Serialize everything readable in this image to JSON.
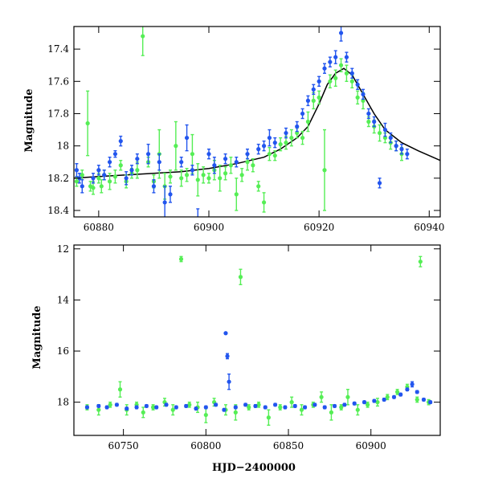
{
  "colors": {
    "green": "#55ee55",
    "blue": "#2255ee",
    "model": "#000000"
  },
  "chart_data": [
    {
      "type": "scatter",
      "panel": "top",
      "xlabel": "",
      "ylabel": "Magnitude",
      "xlim": [
        60875.5,
        60942
      ],
      "ylim": [
        18.44,
        17.26
      ],
      "y_inverted": true,
      "xticks": [
        60880,
        60900,
        60920,
        60940
      ],
      "yticks": [
        17.4,
        17.6,
        17.8,
        18,
        18.2,
        18.4
      ],
      "xtick_labels": [
        "60880",
        "60900",
        "60920",
        "60940"
      ],
      "ytick_labels": [
        "17.4",
        "17.6",
        "17.8",
        "18",
        "18.2",
        "18.4"
      ],
      "model_curve": {
        "x": [
          60875.5,
          60880,
          60885,
          60890,
          60895,
          60900,
          60905,
          60910,
          60913,
          60916,
          60918,
          60920,
          60921.5,
          60923,
          60924.5,
          60926,
          60928,
          60930,
          60932,
          60935,
          60938,
          60942
        ],
        "y": [
          18.2,
          18.19,
          18.18,
          18.17,
          18.16,
          18.14,
          18.11,
          18.07,
          18.02,
          17.95,
          17.88,
          17.74,
          17.62,
          17.55,
          17.52,
          17.56,
          17.68,
          17.8,
          17.9,
          17.98,
          18.03,
          18.09
        ]
      },
      "series": [
        {
          "name": "",
          "color": "green",
          "x": [
            60876,
            60877,
            60878,
            60878.5,
            60879,
            60880,
            60880.5,
            60881,
            60882,
            60883,
            60884,
            60885,
            60886,
            60887,
            60888,
            60889,
            60890,
            60891,
            60892,
            60893,
            60894,
            60895,
            60896,
            60897,
            60898,
            60899,
            60900,
            60901,
            60902,
            60903,
            60904,
            60905,
            60906,
            60907,
            60908,
            60909,
            60910,
            60911,
            60912,
            60913,
            60914,
            60915,
            60916,
            60917,
            60918,
            60919,
            60920,
            60921,
            60922,
            60923,
            60924,
            60925,
            60926,
            60927,
            60928,
            60929,
            60930,
            60931,
            60932,
            60933,
            60934,
            60935
          ],
          "y": [
            18.22,
            18.18,
            17.86,
            18.25,
            18.26,
            18.2,
            18.25,
            18.18,
            18.22,
            18.19,
            18.12,
            18.22,
            18.17,
            18.15,
            17.32,
            18.1,
            18.22,
            18.05,
            18.25,
            18.19,
            18.0,
            18.2,
            18.18,
            18.05,
            18.21,
            18.18,
            18.2,
            18.15,
            18.2,
            18.17,
            18.12,
            18.3,
            18.18,
            18.1,
            18.12,
            18.25,
            18.35,
            18.05,
            18.06,
            17.99,
            17.98,
            17.95,
            17.92,
            17.95,
            17.85,
            17.72,
            17.7,
            18.15,
            17.6,
            17.58,
            17.5,
            17.55,
            17.6,
            17.7,
            17.72,
            17.85,
            17.88,
            17.92,
            17.95,
            17.98,
            18.0,
            18.05
          ],
          "yerr": [
            0.03,
            0.03,
            0.2,
            0.03,
            0.04,
            0.03,
            0.04,
            0.03,
            0.05,
            0.04,
            0.03,
            0.04,
            0.03,
            0.05,
            0.12,
            0.03,
            0.04,
            0.15,
            0.08,
            0.04,
            0.15,
            0.05,
            0.04,
            0.12,
            0.1,
            0.05,
            0.03,
            0.06,
            0.08,
            0.04,
            0.05,
            0.1,
            0.04,
            0.05,
            0.04,
            0.03,
            0.06,
            0.04,
            0.03,
            0.04,
            0.04,
            0.05,
            0.03,
            0.04,
            0.06,
            0.05,
            0.04,
            0.25,
            0.04,
            0.05,
            0.04,
            0.05,
            0.04,
            0.04,
            0.05,
            0.03,
            0.04,
            0.05,
            0.03,
            0.04,
            0.03,
            0.04
          ]
        },
        {
          "name": "",
          "color": "blue",
          "x": [
            60876,
            60876.5,
            60877,
            60879,
            60880,
            60881,
            60882,
            60883,
            60884,
            60885,
            60886,
            60887,
            60889,
            60890,
            60891,
            60892,
            60893,
            60895,
            60896,
            60897,
            60898,
            60900,
            60901,
            60903,
            60905,
            60907,
            60909,
            60910,
            60911,
            60912,
            60914,
            60916,
            60917,
            60918,
            60919,
            60920,
            60921,
            60922,
            60923,
            60924,
            60925,
            60926,
            60927,
            60928,
            60929,
            60930,
            60931,
            60932,
            60933,
            60934,
            60935,
            60936
          ],
          "y": [
            18.15,
            18.2,
            18.25,
            18.2,
            18.15,
            18.18,
            18.1,
            18.05,
            17.97,
            18.2,
            18.15,
            18.08,
            18.05,
            18.25,
            18.1,
            18.35,
            18.3,
            18.1,
            17.95,
            18.15,
            18.45,
            18.05,
            18.12,
            18.08,
            18.1,
            18.05,
            18.02,
            18.0,
            17.95,
            17.98,
            17.92,
            17.88,
            17.8,
            17.72,
            17.65,
            17.6,
            17.52,
            17.48,
            17.45,
            17.3,
            17.45,
            17.55,
            17.62,
            17.68,
            17.8,
            17.85,
            18.23,
            17.9,
            17.95,
            18.0,
            18.02,
            18.05
          ],
          "yerr": [
            0.04,
            0.03,
            0.04,
            0.03,
            0.03,
            0.03,
            0.03,
            0.02,
            0.03,
            0.04,
            0.03,
            0.03,
            0.06,
            0.04,
            0.05,
            0.1,
            0.05,
            0.03,
            0.08,
            0.03,
            0.06,
            0.03,
            0.05,
            0.03,
            0.03,
            0.03,
            0.03,
            0.03,
            0.05,
            0.03,
            0.03,
            0.03,
            0.03,
            0.03,
            0.03,
            0.03,
            0.03,
            0.03,
            0.04,
            0.05,
            0.03,
            0.03,
            0.03,
            0.03,
            0.03,
            0.03,
            0.03,
            0.04,
            0.03,
            0.03,
            0.03,
            0.03
          ]
        }
      ]
    },
    {
      "type": "scatter",
      "panel": "bottom",
      "xlabel": "HJD−2400000",
      "ylabel": "Magnitude",
      "xlim": [
        60720,
        60942
      ],
      "ylim": [
        19.3,
        11.85
      ],
      "y_inverted": true,
      "xticks": [
        60750,
        60800,
        60850,
        60900
      ],
      "yticks": [
        12,
        14,
        16,
        18
      ],
      "xtick_labels": [
        "60750",
        "60800",
        "60850",
        "60900"
      ],
      "ytick_labels": [
        "12",
        "14",
        "16",
        "18"
      ],
      "series": [
        {
          "name": "",
          "color": "green",
          "x": [
            60728,
            60735,
            60742,
            60748,
            60752,
            60758,
            60762,
            60768,
            60775,
            60780,
            60785,
            60790,
            60795,
            60800,
            60805,
            60812,
            60818,
            60821,
            60826,
            60832,
            60838,
            60845,
            60852,
            60858,
            60865,
            60870,
            60876,
            60882,
            60886,
            60892,
            60898,
            60904,
            60910,
            60916,
            60922,
            60928,
            60930,
            60935
          ],
          "y": [
            18.2,
            18.3,
            18.1,
            17.5,
            18.3,
            18.1,
            18.4,
            18.2,
            18.0,
            18.3,
            12.4,
            18.1,
            18.2,
            18.5,
            18.0,
            18.3,
            18.4,
            13.1,
            18.2,
            18.1,
            18.6,
            18.2,
            18.0,
            18.3,
            18.1,
            17.8,
            18.4,
            18.2,
            17.8,
            18.3,
            18.1,
            18.0,
            17.8,
            17.6,
            17.4,
            17.9,
            12.5,
            18.0
          ],
          "yerr": [
            0.1,
            0.2,
            0.1,
            0.3,
            0.2,
            0.1,
            0.2,
            0.1,
            0.15,
            0.2,
            0.1,
            0.1,
            0.2,
            0.3,
            0.15,
            0.2,
            0.3,
            0.3,
            0.1,
            0.1,
            0.3,
            0.1,
            0.2,
            0.2,
            0.1,
            0.2,
            0.3,
            0.1,
            0.3,
            0.2,
            0.1,
            0.15,
            0.1,
            0.1,
            0.1,
            0.1,
            0.2,
            0.1
          ]
        },
        {
          "name": "",
          "color": "blue",
          "x": [
            60728,
            60735,
            60740,
            60746,
            60752,
            60758,
            60764,
            60770,
            60776,
            60782,
            60788,
            60794,
            60800,
            60806,
            60811,
            60812,
            60813,
            60814,
            60818,
            60824,
            60830,
            60836,
            60842,
            60848,
            60854,
            60860,
            60866,
            60872,
            60878,
            60884,
            60890,
            60896,
            60902,
            60908,
            60914,
            60918,
            60922,
            60925,
            60928,
            60932,
            60936
          ],
          "y": [
            18.2,
            18.15,
            18.2,
            18.1,
            18.25,
            18.2,
            18.15,
            18.2,
            18.1,
            18.2,
            18.15,
            18.25,
            18.2,
            18.1,
            18.3,
            15.3,
            16.2,
            17.2,
            18.2,
            18.1,
            18.15,
            18.2,
            18.1,
            18.2,
            18.15,
            18.2,
            18.1,
            18.2,
            18.15,
            18.1,
            18.05,
            18.0,
            17.95,
            17.9,
            17.8,
            17.7,
            17.5,
            17.3,
            17.6,
            17.9,
            18.0
          ],
          "yerr": [
            0.05,
            0.05,
            0.05,
            0.05,
            0.05,
            0.05,
            0.05,
            0.05,
            0.05,
            0.05,
            0.05,
            0.05,
            0.05,
            0.05,
            0.05,
            0.03,
            0.1,
            0.3,
            0.05,
            0.05,
            0.05,
            0.05,
            0.05,
            0.05,
            0.05,
            0.05,
            0.05,
            0.05,
            0.05,
            0.05,
            0.05,
            0.05,
            0.05,
            0.05,
            0.05,
            0.05,
            0.05,
            0.1,
            0.05,
            0.05,
            0.05
          ]
        }
      ]
    }
  ]
}
